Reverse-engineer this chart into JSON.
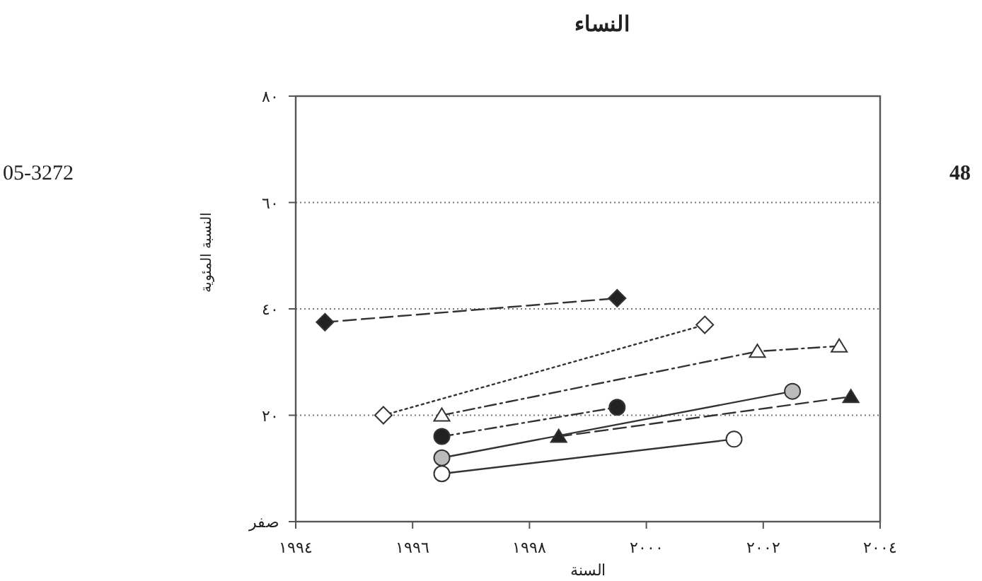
{
  "chart_data": {
    "type": "line",
    "title": "النساء",
    "xlabel": "السنة",
    "ylabel": "النسبة المئوية",
    "annotations": [
      "05-3272",
      "48"
    ],
    "xlim": [
      1994,
      2004
    ],
    "xticks": [
      {
        "value": 1994,
        "label": "١٩٩٤"
      },
      {
        "value": 1996,
        "label": "١٩٩٦"
      },
      {
        "value": 1998,
        "label": "١٩٩٨"
      },
      {
        "value": 2000,
        "label": "٢٠٠٠"
      },
      {
        "value": 2002,
        "label": "٢٠٠٢"
      },
      {
        "value": 2004,
        "label": "٢٠٠٤"
      }
    ],
    "ylim": [
      0,
      80
    ],
    "yticks": [
      {
        "value": 0,
        "label": "صفر"
      },
      {
        "value": 20,
        "label": "٢٠"
      },
      {
        "value": 40,
        "label": "٤٠"
      },
      {
        "value": 60,
        "label": "٦٠"
      },
      {
        "value": 80,
        "label": "٨٠"
      }
    ],
    "grid": "y",
    "series": [
      {
        "x": [
          1994.5,
          1999.5
        ],
        "values": [
          37.5,
          42
        ],
        "color": "#222222",
        "marker": "diamond",
        "line_style": "dashed"
      },
      {
        "x": [
          1995.5,
          2001
        ],
        "values": [
          20,
          37
        ],
        "color": "#ffffff",
        "marker": "diamond",
        "line_style": "dotted"
      },
      {
        "x": [
          1996.5,
          2001.9,
          2003.3
        ],
        "values": [
          20,
          32,
          33
        ],
        "color": "#ffffff",
        "marker": "triangle",
        "line_style": "dashdot"
      },
      {
        "x": [
          1996.5,
          1999.5
        ],
        "values": [
          16,
          21.5
        ],
        "color": "#222222",
        "marker": "circle",
        "line_style": "dashdot"
      },
      {
        "x": [
          1996.5,
          2002.5
        ],
        "values": [
          12,
          24.5
        ],
        "color": "#bbbbbb",
        "marker": "circle",
        "line_style": "solid"
      },
      {
        "x": [
          1998.5,
          2003.5
        ],
        "values": [
          16,
          23.5
        ],
        "color": "#222222",
        "marker": "triangle",
        "line_style": "dashed"
      },
      {
        "x": [
          1996.5,
          2001.5
        ],
        "values": [
          9,
          15.5
        ],
        "color": "#ffffff",
        "marker": "circle",
        "line_style": "solid"
      }
    ]
  }
}
